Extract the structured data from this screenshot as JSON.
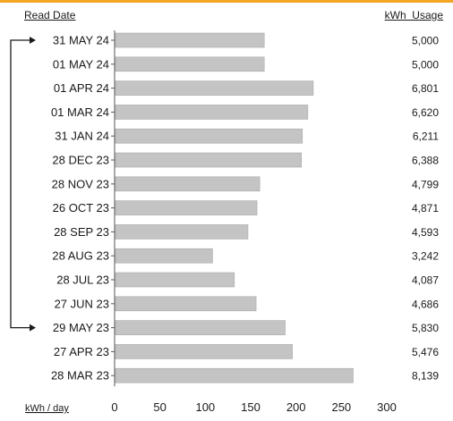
{
  "header": {
    "left": "Read Date",
    "right": "kWh  Usage"
  },
  "colors": {
    "accent": "#f5a623",
    "bar": "#c4c4c4",
    "bar_stroke": "#a9a9a9"
  },
  "chart_data": {
    "type": "bar",
    "orientation": "horizontal",
    "categories": [
      "31 MAY 24",
      "01 MAY 24",
      "01 APR 24",
      "01 MAR 24",
      "31 JAN 24",
      "28 DEC 23",
      "28 NOV 23",
      "26 OCT 23",
      "28 SEP 23",
      "28 AUG 23",
      "28 JUL 23",
      "27 JUN 23",
      "29 MAY 23",
      "27 APR 23",
      "28 MAR 23"
    ],
    "values": [
      165,
      165,
      219,
      213,
      207,
      206,
      160,
      157,
      147,
      108,
      132,
      156,
      188,
      196,
      263
    ],
    "usage_labels": [
      "5,000",
      "5,000",
      "6,801",
      "6,620",
      "6,211",
      "6,388",
      "4,799",
      "4,871",
      "4,593",
      "3,242",
      "4,087",
      "4,686",
      "5,830",
      "5,476",
      "8,139"
    ],
    "xlabel": "kWh / day",
    "xlim": [
      0,
      300
    ],
    "xticks": [
      0,
      50,
      100,
      150,
      200,
      250,
      300
    ],
    "grid": false,
    "comparison_bracket": {
      "from": "31 MAY 24",
      "to": "29 MAY 23"
    }
  }
}
